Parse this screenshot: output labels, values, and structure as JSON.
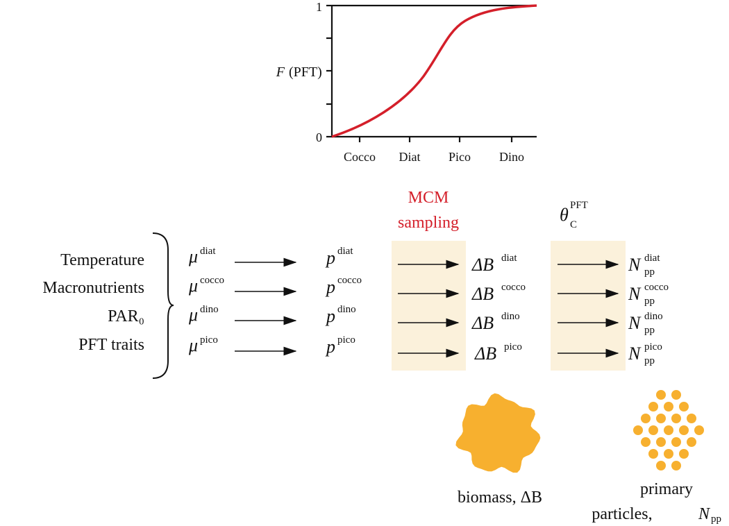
{
  "plot": {
    "y_tick_bottom": "0",
    "y_tick_top": "1",
    "y_label_symbol": "F",
    "y_label_text": "(PFT)",
    "x_categories": [
      "Cocco",
      "Diat",
      "Pico",
      "Dino"
    ]
  },
  "inputs": [
    "Temperature",
    "Macronutrients",
    "PAR₀",
    "PFT traits"
  ],
  "symbols": {
    "mu": "μ",
    "p": "p",
    "delta_b": "ΔB",
    "n": "N",
    "n_sub": "pp"
  },
  "rows": [
    "diat",
    "cocco",
    "dino",
    "pico"
  ],
  "stage_1": {
    "line_1": "MCM",
    "line_2": "sampling"
  },
  "stage_2": {
    "symbol": "θ",
    "sub": "C",
    "sup": "PFT"
  },
  "legend": {
    "biomass": "biomass, ΔB",
    "particles_line_1": "primary",
    "particles_line_2": "particles, ",
    "particles_symbol": "N",
    "particles_sub": "pp"
  }
}
